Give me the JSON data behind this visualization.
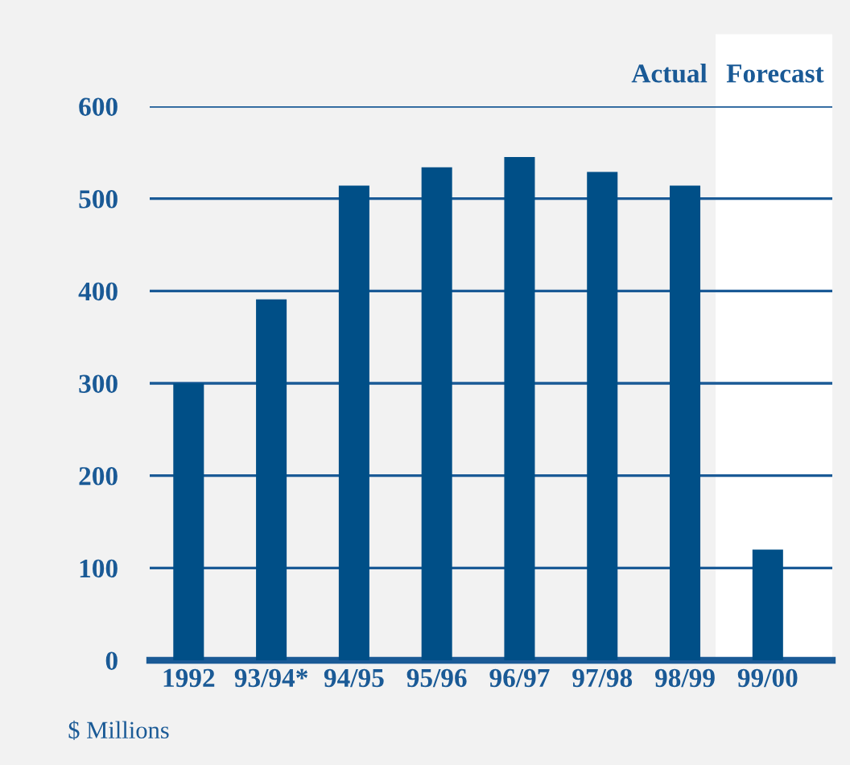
{
  "chart_data": {
    "type": "bar",
    "categories": [
      "1992",
      "93/94*",
      "94/95",
      "95/96",
      "96/97",
      "97/98",
      "98/99",
      "99/00"
    ],
    "values": [
      300,
      391,
      514,
      534,
      545,
      529,
      514,
      120
    ],
    "color": "#004f87",
    "ylabel": "$ Millions",
    "ylim": [
      0,
      600
    ],
    "yticks": [
      0,
      100,
      200,
      300,
      400,
      500,
      600
    ],
    "grid": "y",
    "annotations": [
      "Actual",
      "Forecast"
    ]
  }
}
